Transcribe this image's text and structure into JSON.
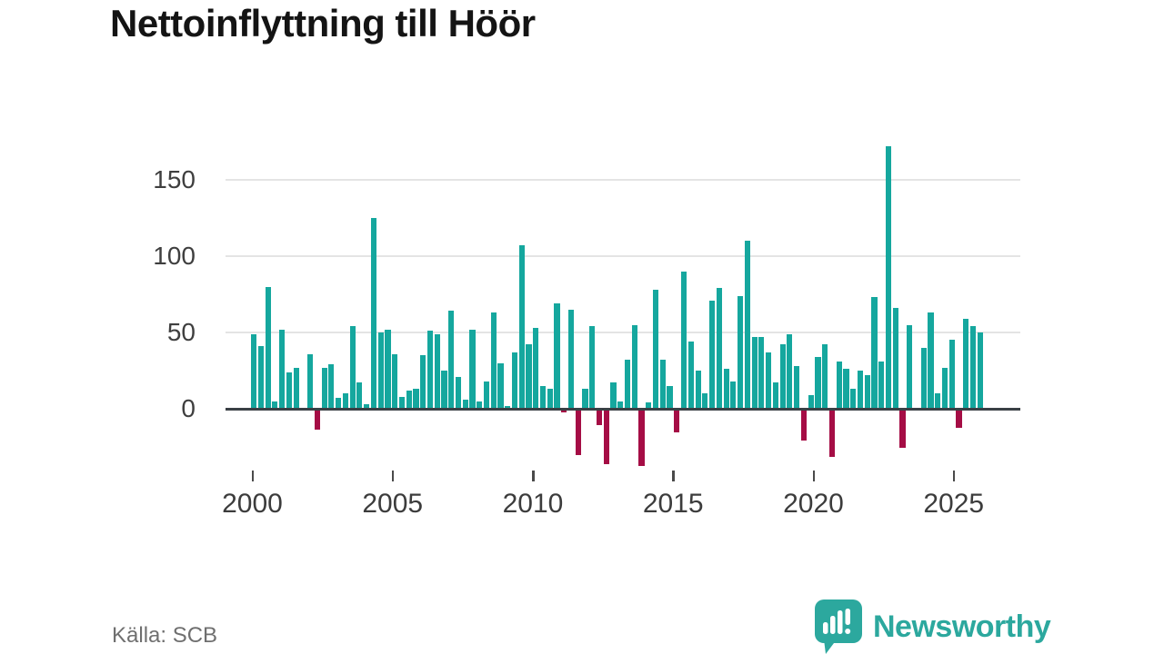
{
  "header": {
    "title": "Nettoinflyttning till Höör"
  },
  "footer": {
    "source_label": "Källa: SCB",
    "brand": "Newsworthy"
  },
  "colors": {
    "positive": "#15a79e",
    "negative": "#a50d45",
    "brand": "#2ca89e",
    "grid": "#e4e4e4",
    "axis": "#3a4045",
    "tick_text": "#3c3c3c"
  },
  "chart_data": {
    "type": "bar",
    "title": "Nettoinflyttning till Höör",
    "frequency": "quarterly",
    "start": "2000-Q1",
    "end": "2025-Q4",
    "values": [
      49,
      41,
      80,
      5,
      52,
      24,
      27,
      0,
      36,
      -13,
      27,
      29,
      7,
      10,
      54,
      17,
      3,
      125,
      50,
      52,
      36,
      8,
      12,
      13,
      35,
      51,
      49,
      25,
      64,
      21,
      6,
      52,
      5,
      18,
      63,
      30,
      2,
      37,
      107,
      42,
      53,
      15,
      13,
      69,
      -2,
      65,
      -30,
      13,
      54,
      -10,
      -36,
      17,
      5,
      32,
      55,
      -37,
      4,
      78,
      32,
      15,
      -15,
      90,
      44,
      25,
      10,
      71,
      79,
      26,
      18,
      74,
      110,
      47,
      47,
      37,
      17,
      42,
      49,
      28,
      -20,
      9,
      34,
      42,
      -31,
      31,
      26,
      13,
      25,
      22,
      73,
      31,
      172,
      66,
      -25,
      55,
      0,
      40,
      63,
      10,
      27,
      45,
      -12,
      59,
      54,
      50
    ],
    "yticks": [
      0,
      50,
      100,
      150
    ],
    "xticks": [
      2000,
      2005,
      2010,
      2015,
      2020,
      2025
    ],
    "ylim": [
      -45,
      180
    ],
    "grid": true,
    "legend": "none",
    "positive_color": "#15a79e",
    "negative_color": "#a50d45"
  }
}
